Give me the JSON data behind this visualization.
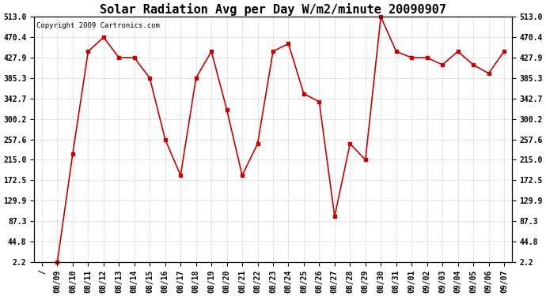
{
  "title": "Solar Radiation Avg per Day W/m2/minute 20090907",
  "copyright": "Copyright 2009 Cartronics.com",
  "x_labels": [
    "/",
    "08/09",
    "08/10",
    "08/11",
    "08/12",
    "08/13",
    "08/14",
    "08/15",
    "08/16",
    "08/17",
    "08/18",
    "08/19",
    "08/20",
    "08/21",
    "08/22",
    "08/23",
    "08/24",
    "08/25",
    "08/26",
    "08/27",
    "08/28",
    "08/29",
    "08/30",
    "08/31",
    "09/01",
    "09/02",
    "09/03",
    "09/04",
    "09/05",
    "09/06",
    "09/07"
  ],
  "y_values": [
    2.2,
    228.0,
    441.0,
    470.4,
    427.9,
    427.9,
    385.3,
    257.6,
    182.5,
    385.3,
    441.0,
    319.5,
    182.5,
    248.5,
    441.0,
    457.0,
    352.8,
    336.0,
    97.0,
    248.5,
    215.0,
    513.0,
    441.0,
    427.9,
    427.9,
    413.0,
    441.0,
    413.0,
    395.0,
    441.0
  ],
  "y_ticks": [
    2.2,
    44.8,
    87.3,
    129.9,
    172.5,
    215.0,
    257.6,
    300.2,
    342.7,
    385.3,
    427.9,
    470.4,
    513.0
  ],
  "line_color": "#cc0000",
  "marker": "s",
  "marker_size": 3,
  "bg_color": "#ffffff",
  "plot_bg_color": "#ffffff",
  "grid_color": "#cccccc",
  "title_fontsize": 11,
  "tick_fontsize": 7,
  "copyright_fontsize": 6.5
}
